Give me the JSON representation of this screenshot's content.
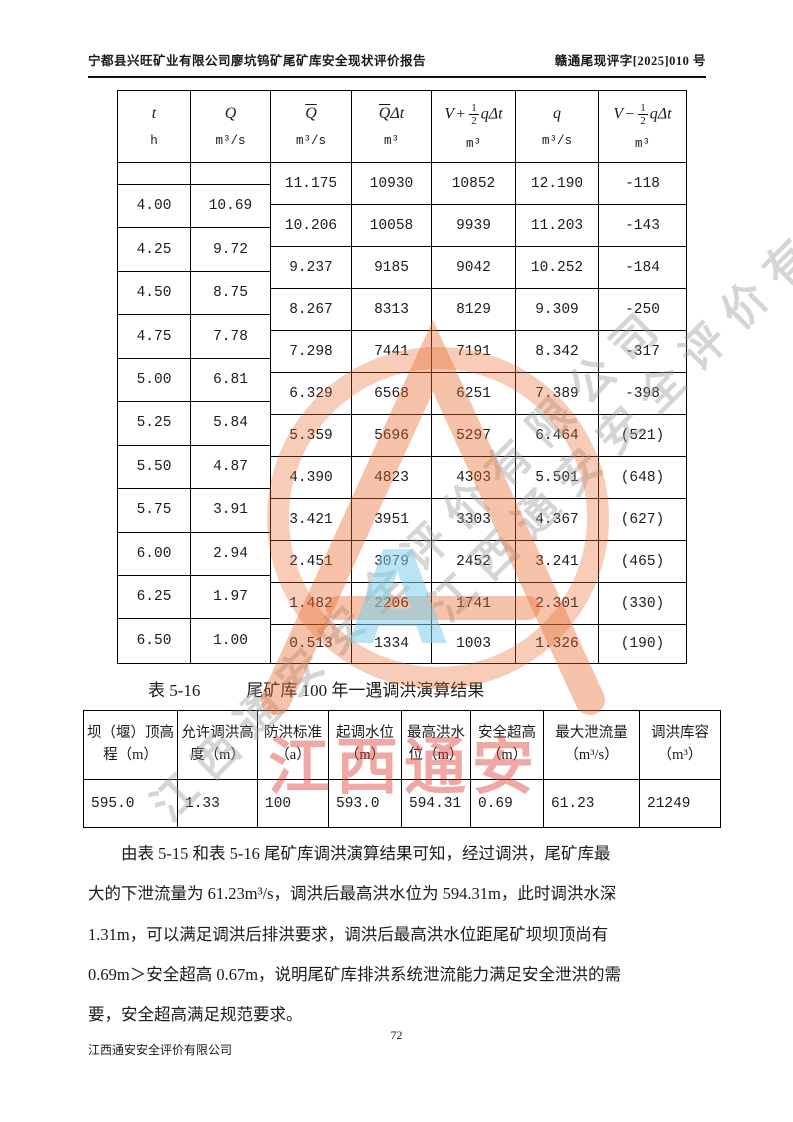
{
  "page": {
    "header_left": "宁都县兴旺矿业有限公司廖坑钨矿尾矿库安全现状评价报告",
    "header_right": "赣通尾现评字[2025]010 号",
    "page_number": "72",
    "footer_company": "江西通安安全评价有限公司"
  },
  "table1": {
    "columns": [
      {
        "sym": "t",
        "unit": "h"
      },
      {
        "sym": "Q",
        "unit": "m³/s"
      },
      {
        "sym_bar": "Q",
        "unit": "m³/s"
      },
      {
        "sym_bar": "Q",
        "sym_rest": "Δt",
        "unit": "m³"
      },
      {
        "v": "V",
        "op": "+",
        "num": "1",
        "den": "2",
        "rest": "qΔt",
        "unit": "m³"
      },
      {
        "sym": "q",
        "unit": "m³/s"
      },
      {
        "v": "V",
        "op": "−",
        "num": "1",
        "den": "2",
        "rest": "qΔt",
        "unit": "m³"
      }
    ],
    "left_rows": [
      [
        "4.00",
        "10.69"
      ],
      [
        "4.25",
        "9.72"
      ],
      [
        "4.50",
        "8.75"
      ],
      [
        "4.75",
        "7.78"
      ],
      [
        "5.00",
        "6.81"
      ],
      [
        "5.25",
        "5.84"
      ],
      [
        "5.50",
        "4.87"
      ],
      [
        "5.75",
        "3.91"
      ],
      [
        "6.00",
        "2.94"
      ],
      [
        "6.25",
        "1.97"
      ],
      [
        "6.50",
        "1.00"
      ]
    ],
    "right_rows": [
      [
        "11.175",
        "10930",
        "10852",
        "12.190",
        "-118"
      ],
      [
        "10.206",
        "10058",
        "9939",
        "11.203",
        "-143"
      ],
      [
        "9.237",
        "9185",
        "9042",
        "10.252",
        "-184"
      ],
      [
        "8.267",
        "8313",
        "8129",
        "9.309",
        "-250"
      ],
      [
        "7.298",
        "7441",
        "7191",
        "8.342",
        "-317"
      ],
      [
        "6.329",
        "6568",
        "6251",
        "7.389",
        "-398"
      ],
      [
        "5.359",
        "5696",
        "5297",
        "6.464",
        "(521)"
      ],
      [
        "4.390",
        "4823",
        "4303",
        "5.501",
        "(648)"
      ],
      [
        "3.421",
        "3951",
        "3303",
        "4.367",
        "(627)"
      ],
      [
        "2.451",
        "3079",
        "2452",
        "3.241",
        "(465)"
      ],
      [
        "1.482",
        "2206",
        "1741",
        "2.301",
        "(330)"
      ],
      [
        "0.513",
        "1334",
        "1003",
        "1.326",
        "(190)"
      ]
    ]
  },
  "caption": {
    "label": "表 5-16",
    "text": "尾矿库 100 年一遇调洪演算结果"
  },
  "table2": {
    "headers": [
      "坝（堰）顶高程（m）",
      "允许调洪高度（m）",
      "防洪标准（a）",
      "起调水位（m）",
      "最高洪水位（m）",
      "安全超高（m）",
      "最大泄流量（m³/s）",
      "调洪库容（m³）"
    ],
    "row": [
      "595.0",
      "1.33",
      "100",
      "593.0",
      "594.31",
      "0.69",
      "61.23",
      "21249"
    ]
  },
  "paragraph": {
    "lines": [
      "由表 5-15 和表 5-16 尾矿库调洪演算结果可知，经过调洪，尾矿库最",
      "大的下泄流量为 61.23m³/s，调洪后最高洪水位为 594.31m，此时调洪水深",
      "1.31m，可以满足调洪后排洪要求，调洪后最高洪水位距尾矿坝坝顶尚有",
      "0.69m＞安全超高 0.67m，说明尾矿库排洪系统泄流能力满足安全泄洪的需",
      "要，安全超高满足规范要求。"
    ]
  },
  "watermark": {
    "company_gray": "江西通安安全评价有限公司",
    "red_text": "江西通安",
    "blue_letter": "A",
    "accent_orange": "#E8682A",
    "accent_red": "#DB3E32",
    "accent_blue": "#7DCDEB",
    "accent_gray": "#9B9B9B"
  }
}
